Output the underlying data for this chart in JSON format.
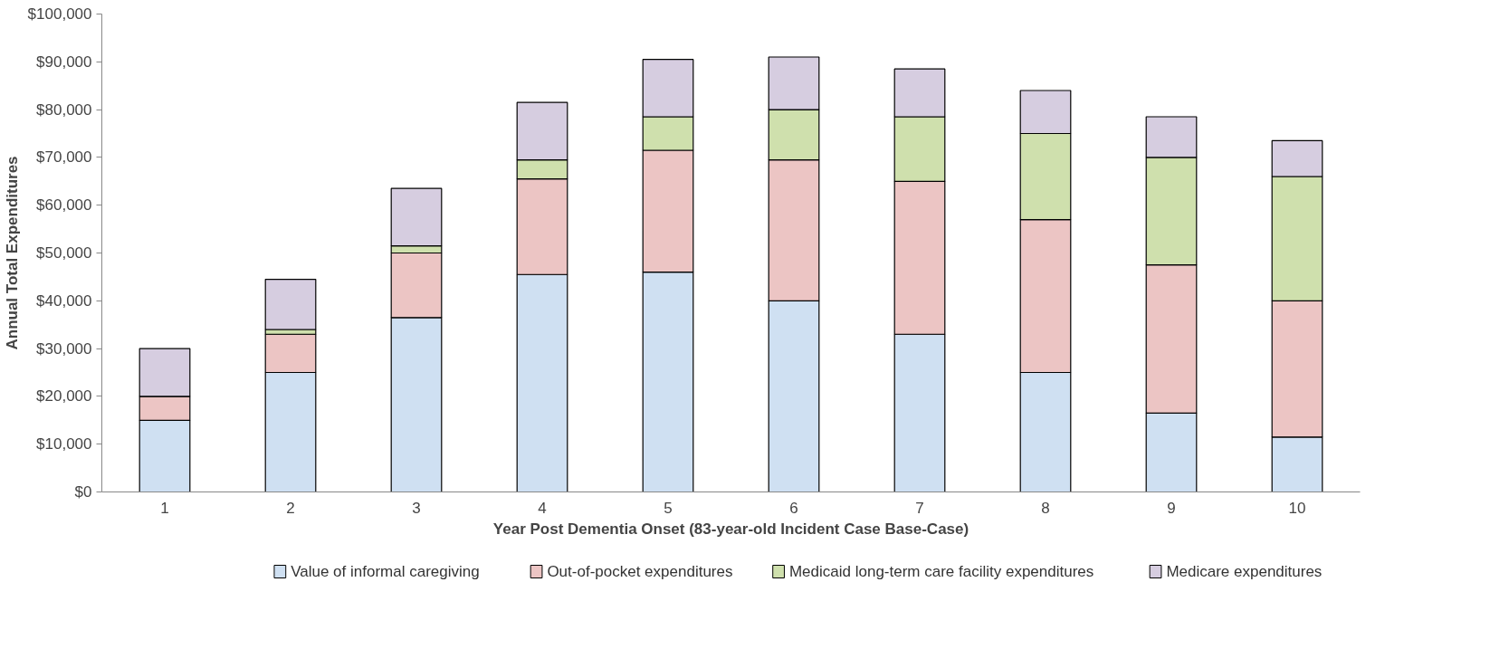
{
  "chart_data": {
    "type": "bar",
    "stacked": true,
    "xlabel": "Year Post Dementia Onset (83-year-old Incident Case Base-Case)",
    "ylabel": "Annual Total Expenditures",
    "categories": [
      "1",
      "2",
      "3",
      "4",
      "5",
      "6",
      "7",
      "8",
      "9",
      "10"
    ],
    "series": [
      {
        "name": "Value of informal caregiving",
        "color": "#cfe0f2",
        "values": [
          15000,
          25000,
          36500,
          45500,
          46000,
          40000,
          33000,
          25000,
          16500,
          11500
        ]
      },
      {
        "name": "Out-of-pocket expenditures",
        "color": "#ecc5c4",
        "values": [
          5000,
          8000,
          13500,
          20000,
          25500,
          29500,
          32000,
          32000,
          31000,
          28500
        ]
      },
      {
        "name": "Medicaid long-term care facility expenditures",
        "color": "#cfe0ad",
        "values": [
          0,
          1000,
          1500,
          4000,
          7000,
          10500,
          13500,
          18000,
          22500,
          26000
        ]
      },
      {
        "name": "Medicare expenditures",
        "color": "#d6cde0",
        "values": [
          10000,
          10500,
          12000,
          12000,
          12000,
          11000,
          10000,
          9000,
          8500,
          7500
        ]
      }
    ],
    "ylim": [
      0,
      100000
    ],
    "yticks": [
      {
        "value": 0,
        "label": "$0"
      },
      {
        "value": 10000,
        "label": "$10,000"
      },
      {
        "value": 20000,
        "label": "$20,000"
      },
      {
        "value": 30000,
        "label": "$30,000"
      },
      {
        "value": 40000,
        "label": "$40,000"
      },
      {
        "value": 50000,
        "label": "$50,000"
      },
      {
        "value": 60000,
        "label": "$60,000"
      },
      {
        "value": 70000,
        "label": "$70,000"
      },
      {
        "value": 80000,
        "label": "$80,000"
      },
      {
        "value": 90000,
        "label": "$90,000"
      },
      {
        "value": 100000,
        "label": "$100,000"
      }
    ],
    "grid": false,
    "legend": "bottom"
  }
}
